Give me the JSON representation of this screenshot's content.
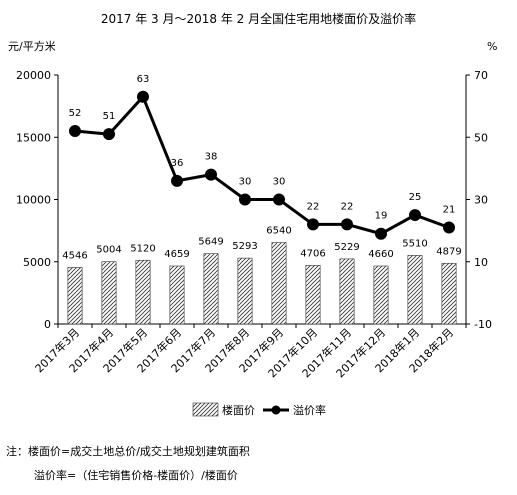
{
  "chart_data": {
    "type": "bar+line",
    "title": "2017 年 3 月～2018 年 2 月全国住宅用地楼面价及溢价率",
    "categories": [
      "2017年3月",
      "2017年4月",
      "2017年5月",
      "2017年6月",
      "2017年7月",
      "2017年8月",
      "2017年9月",
      "2017年10月",
      "2017年11月",
      "2017年12月",
      "2018年1月",
      "2018年2月"
    ],
    "y_left_label": "元/平方米",
    "y_left_lim": [
      0,
      20000
    ],
    "y_left_ticks": [
      0,
      5000,
      10000,
      15000,
      20000
    ],
    "y_right_label": "%",
    "y_right_lim": [
      -10,
      70
    ],
    "y_right_ticks": [
      -10,
      10,
      30,
      50,
      70
    ],
    "series": [
      {
        "name": "楼面价",
        "kind": "bar",
        "axis": "left",
        "values": [
          4546,
          5004,
          5120,
          4659,
          5649,
          5293,
          6540,
          4706,
          5229,
          4660,
          5510,
          4879
        ]
      },
      {
        "name": "溢价率",
        "kind": "line",
        "axis": "right",
        "values": [
          52,
          51,
          63,
          36,
          38,
          30,
          30,
          22,
          22,
          19,
          25,
          21
        ]
      }
    ],
    "legend_position": "bottom",
    "bar_pattern": "diagonal-hatch",
    "line_color": "#000000"
  },
  "notes": {
    "line1": "注：楼面价=成交土地总价/成交土地规划建筑面积",
    "line2": "溢价率=（住宅销售价格-楼面价）/楼面价"
  }
}
